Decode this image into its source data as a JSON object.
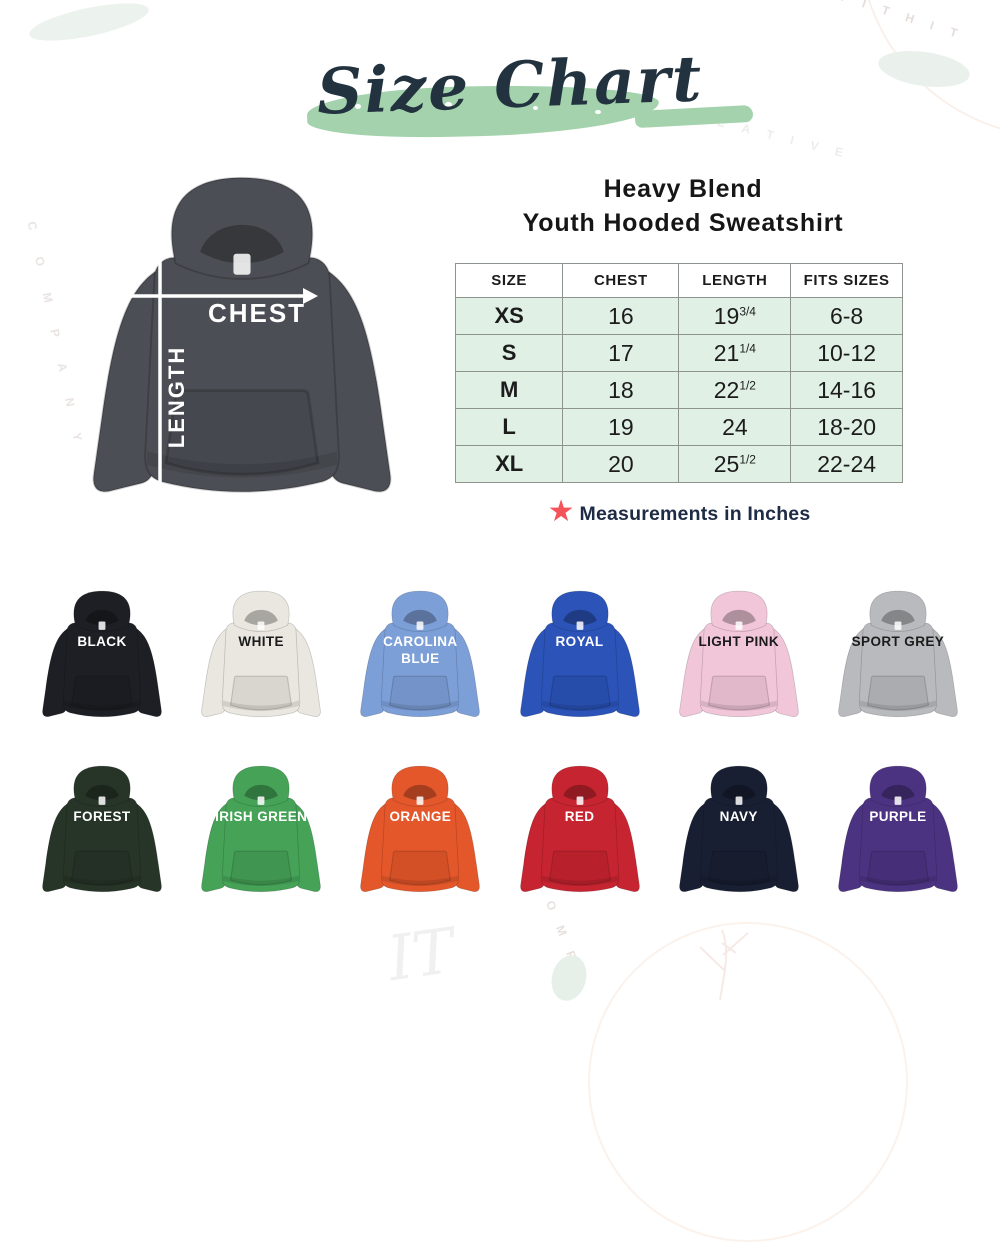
{
  "title": {
    "text": "Size Chart",
    "brush_color": "#a3d2ac",
    "text_color": "#22333f"
  },
  "product": {
    "line1": "Heavy Blend",
    "line2": "Youth Hooded Sweatshirt"
  },
  "diagram": {
    "color_hex": "#4b4e54",
    "chest_label": "CHEST",
    "length_label": "LENGTH",
    "arrow_color": "#ffffff"
  },
  "chart_data": {
    "type": "table",
    "title": "Heavy Blend Youth Hooded Sweatshirt Size Chart",
    "units": "inches",
    "columns": [
      "SIZE",
      "CHEST",
      "LENGTH",
      "FITS SIZES"
    ],
    "rows": [
      {
        "size": "XS",
        "chest": "16",
        "length_whole": "19",
        "length_frac": "3/4",
        "fits_sizes": "6-8"
      },
      {
        "size": "S",
        "chest": "17",
        "length_whole": "21",
        "length_frac": "1/4",
        "fits_sizes": "10-12"
      },
      {
        "size": "M",
        "chest": "18",
        "length_whole": "22",
        "length_frac": "1/2",
        "fits_sizes": "14-16"
      },
      {
        "size": "L",
        "chest": "19",
        "length_whole": "24",
        "length_frac": "",
        "fits_sizes": "18-20"
      },
      {
        "size": "XL",
        "chest": "20",
        "length_whole": "25",
        "length_frac": "1/2",
        "fits_sizes": "22-24"
      }
    ],
    "row_bg": "#e0f0e5",
    "border_color": "#8d938d"
  },
  "note": {
    "star_color": "#f4535a",
    "text": "Measurements in Inches",
    "text_color": "#1d2b44"
  },
  "colors": {
    "rows": [
      [
        {
          "label": "BLACK",
          "hex": "#1e1f24",
          "text": "#ffffff"
        },
        {
          "label": "WHITE",
          "hex": "#e9e7df",
          "text": "#1b1b1b"
        },
        {
          "label": "CAROLINA BLUE",
          "hex": "#7d9fd8",
          "text": "#ffffff"
        },
        {
          "label": "ROYAL",
          "hex": "#2b53b8",
          "text": "#ffffff"
        },
        {
          "label": "LIGHT PINK",
          "hex": "#f1c6d9",
          "text": "#1b1b1b"
        },
        {
          "label": "SPORT GREY",
          "hex": "#b9babd",
          "text": "#1b1b1b"
        }
      ],
      [
        {
          "label": "FOREST",
          "hex": "#273428",
          "text": "#ffffff"
        },
        {
          "label": "IRISH GREEN",
          "hex": "#45a257",
          "text": "#ffffff"
        },
        {
          "label": "ORANGE",
          "hex": "#e4572b",
          "text": "#ffffff"
        },
        {
          "label": "RED",
          "hex": "#c62430",
          "text": "#ffffff"
        },
        {
          "label": "NAVY",
          "hex": "#191f33",
          "text": "#ffffff"
        },
        {
          "label": "PURPLE",
          "hex": "#4c3382",
          "text": "#ffffff"
        }
      ]
    ]
  },
  "watermark": {
    "stamp_top_right": "W I T H I T",
    "stamp_right": "R E A T I V E",
    "stamp_left": "C O M P A N Y",
    "script_bottom": "IT",
    "arc_bottom": "O M P A"
  }
}
